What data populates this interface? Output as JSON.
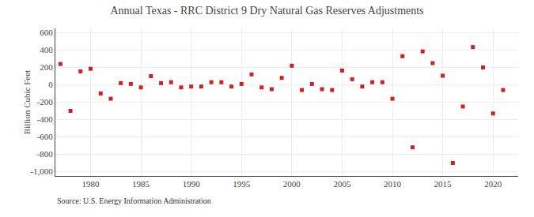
{
  "chart_data": {
    "type": "scatter",
    "title": "Annual Texas - RRC District 9 Dry Natural Gas Reserves Adjustments",
    "ylabel": "Billion Cubic Feet",
    "annotations": [
      "Source: U.S. Energy Information Administration"
    ],
    "x": [
      1977,
      1978,
      1979,
      1980,
      1981,
      1982,
      1983,
      1984,
      1985,
      1986,
      1987,
      1988,
      1989,
      1990,
      1991,
      1992,
      1993,
      1994,
      1995,
      1996,
      1997,
      1998,
      1999,
      2000,
      2001,
      2002,
      2003,
      2004,
      2005,
      2006,
      2007,
      2008,
      2009,
      2010,
      2011,
      2012,
      2013,
      2014,
      2015,
      2016,
      2017,
      2018,
      2019,
      2020,
      2021
    ],
    "values": [
      240,
      -300,
      155,
      185,
      -100,
      -160,
      20,
      10,
      -30,
      100,
      20,
      30,
      -30,
      -20,
      -20,
      30,
      30,
      -20,
      10,
      120,
      -30,
      -50,
      80,
      220,
      -60,
      10,
      -50,
      -60,
      165,
      65,
      -20,
      30,
      30,
      -160,
      330,
      -720,
      385,
      250,
      105,
      -900,
      -250,
      435,
      200,
      -330,
      -60
    ],
    "color": "#cc2222",
    "marker": "square",
    "xlim": [
      1976.5,
      2022.5
    ],
    "xticks": [
      1980,
      1985,
      1990,
      1995,
      2000,
      2005,
      2010,
      2015,
      2020
    ],
    "ylim": [
      -1050,
      650
    ],
    "yticks": [
      {
        "value": -1000,
        "label": "-1,000"
      },
      -800,
      -600,
      -400,
      -200,
      0,
      200,
      400,
      600
    ],
    "grid": true
  }
}
